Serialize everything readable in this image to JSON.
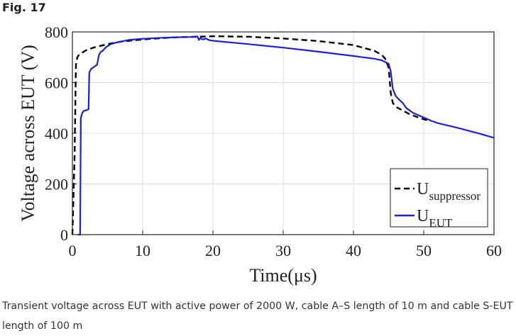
{
  "figure_label": "Fig. 17",
  "caption": "Transient voltage across EUT with active power of 2000 W, cable A–S length of 10 m and cable S-EUT length of 100 m",
  "chart_data": {
    "type": "line",
    "xlabel": "Time(μs)",
    "ylabel": "Voltage across EUT (V)",
    "xlim": [
      0,
      60
    ],
    "ylim": [
      0,
      800
    ],
    "xticks": [
      0,
      10,
      20,
      30,
      40,
      50,
      60
    ],
    "yticks": [
      0,
      200,
      400,
      600,
      800
    ],
    "grid": true,
    "legend_position": "bottom-right",
    "series": [
      {
        "name": "U",
        "name_sub": "suppressor",
        "color": "#000000",
        "dash": "dashed",
        "x": [
          0,
          0.3,
          0.5,
          0.7,
          1,
          1.5,
          2,
          3,
          4,
          5,
          7,
          10,
          13,
          15,
          18,
          20,
          25,
          30,
          35,
          40,
          43,
          44,
          44.5,
          45,
          45.3,
          45.6,
          46,
          47,
          48,
          50,
          51
        ],
        "y": [
          0,
          300,
          670,
          700,
          712,
          720,
          728,
          738,
          745,
          752,
          762,
          770,
          776,
          779,
          781,
          783,
          781,
          774,
          764,
          748,
          725,
          710,
          695,
          660,
          560,
          520,
          505,
          490,
          475,
          455,
          448
        ]
      },
      {
        "name": "U",
        "name_sub": "EUT",
        "color": "#1f1fd9",
        "dash": "solid",
        "x": [
          0.8,
          1.1,
          1.2,
          1.4,
          1.6,
          1.9,
          2.1,
          2.3,
          2.4,
          2.7,
          3.0,
          3.2,
          3.5,
          3.8,
          4.0,
          4.3,
          4.8,
          5.5,
          6.5,
          8,
          10,
          13,
          15,
          17,
          17.8,
          18.0,
          18.2,
          18.6,
          19,
          19.4,
          20,
          25,
          30,
          35,
          40,
          43,
          44,
          44.6,
          45.0,
          45.3,
          45.6,
          46.0,
          46.4,
          47,
          47.5,
          48.5,
          50,
          51,
          52,
          55,
          58,
          60
        ],
        "y": [
          0,
          0,
          460,
          480,
          488,
          490,
          492,
          495,
          640,
          655,
          660,
          665,
          670,
          710,
          720,
          725,
          740,
          752,
          760,
          768,
          773,
          777,
          779,
          780,
          782,
          768,
          775,
          770,
          774,
          768,
          765,
          752,
          738,
          722,
          705,
          694,
          688,
          680,
          675,
          645,
          575,
          548,
          535,
          520,
          500,
          480,
          462,
          450,
          440,
          420,
          398,
          382
        ]
      }
    ]
  }
}
